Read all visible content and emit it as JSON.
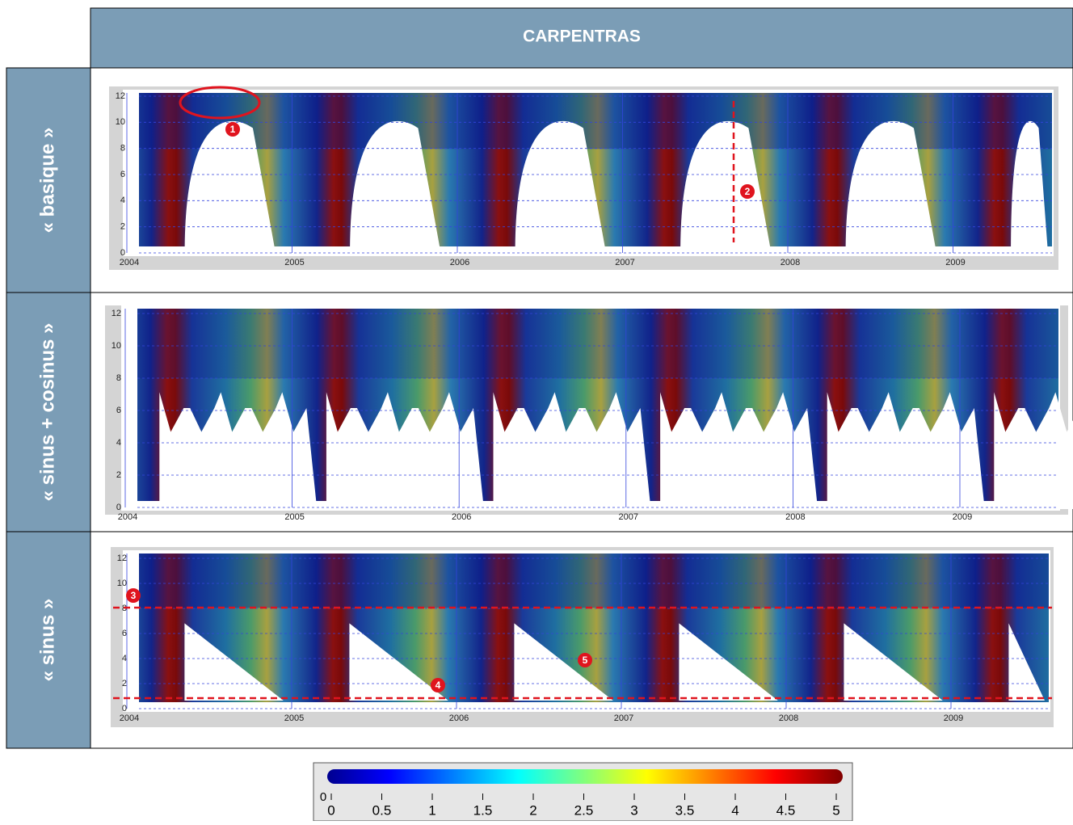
{
  "header": {
    "title": "CARPENTRAS"
  },
  "rows": [
    {
      "label": "« basique »",
      "y_ticks": [
        0,
        2,
        4,
        6,
        8,
        10,
        12
      ],
      "x_labels": [
        "2004",
        "2005",
        "2006",
        "2007",
        "2008",
        "2009"
      ],
      "markers": [
        "1",
        "2"
      ]
    },
    {
      "label": "« sinus + cosinus »",
      "y_ticks": [
        0,
        2,
        4,
        6,
        8,
        10,
        12
      ],
      "x_labels": [
        "2004",
        "2005",
        "2006",
        "2007",
        "2008",
        "2009"
      ],
      "markers": []
    },
    {
      "label": "« sinus »",
      "y_ticks": [
        0,
        2,
        4,
        6,
        8,
        10,
        12
      ],
      "x_labels": [
        "2004",
        "2005",
        "2006",
        "2007",
        "2008",
        "2009"
      ],
      "markers": [
        "3",
        "4",
        "5"
      ]
    }
  ],
  "colorbar": {
    "side_label": 0,
    "ticks": [
      0,
      0.5,
      1,
      1.5,
      2,
      2.5,
      3,
      3.5,
      4,
      4.5,
      5
    ]
  }
}
